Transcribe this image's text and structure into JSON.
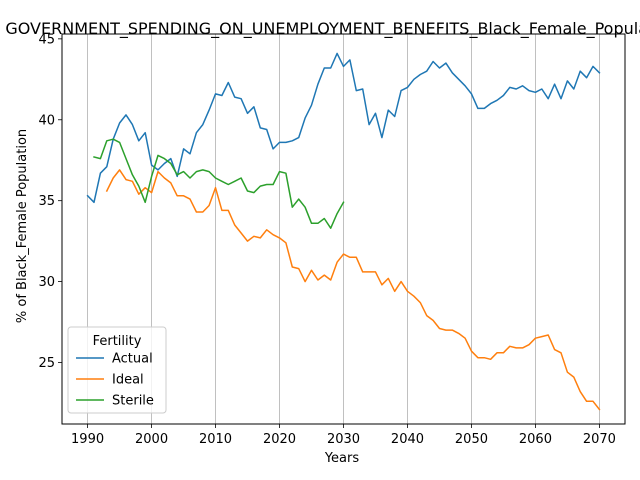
{
  "chart_data": {
    "type": "line",
    "title": "GOVERNMENT_SPENDING_ON_UNEMPLOYMENT_BENEFITS_Black_Female_Population",
    "xlabel": "Years",
    "ylabel": "% of Black_Female Population",
    "xlim": [
      1986,
      2074
    ],
    "ylim": [
      21.2,
      45.3
    ],
    "xticks": [
      1990,
      2000,
      2010,
      2020,
      2030,
      2040,
      2050,
      2060,
      2070
    ],
    "yticks": [
      25,
      30,
      35,
      40,
      45
    ],
    "grid": "x-only",
    "legend": {
      "title": "Fertility",
      "placement": "lower-left"
    },
    "series": [
      {
        "name": "Actual",
        "color": "#1f77b4",
        "x": [
          1990,
          1991,
          1992,
          1993,
          1994,
          1995,
          1996,
          1997,
          1998,
          1999,
          2000,
          2001,
          2002,
          2003,
          2004,
          2005,
          2006,
          2007,
          2008,
          2009,
          2010,
          2011,
          2012,
          2013,
          2014,
          2015,
          2016,
          2017,
          2018,
          2019,
          2020,
          2021,
          2022,
          2023,
          2024,
          2025,
          2026,
          2027,
          2028,
          2029,
          2030,
          2031,
          2032,
          2033,
          2034,
          2035,
          2036,
          2037,
          2038,
          2039,
          2040,
          2041,
          2042,
          2043,
          2044,
          2045,
          2046,
          2047,
          2048,
          2049,
          2050,
          2051,
          2052,
          2053,
          2054,
          2055,
          2056,
          2057,
          2058,
          2059,
          2060,
          2061,
          2062,
          2063,
          2064,
          2065,
          2066,
          2067,
          2068,
          2069,
          2070
        ],
        "values": [
          35.3,
          34.9,
          36.7,
          37.1,
          38.8,
          39.8,
          40.3,
          39.7,
          38.7,
          39.2,
          37.2,
          36.9,
          37.3,
          37.6,
          36.5,
          38.2,
          37.9,
          39.2,
          39.7,
          40.6,
          41.6,
          41.5,
          42.3,
          41.4,
          41.3,
          40.4,
          40.8,
          39.5,
          39.4,
          38.2,
          38.6,
          38.6,
          38.7,
          38.9,
          40.1,
          40.9,
          42.2,
          43.2,
          43.2,
          44.1,
          43.3,
          43.7,
          41.8,
          41.9,
          39.7,
          40.4,
          38.9,
          40.6,
          40.2,
          41.8,
          42.0,
          42.5,
          42.8,
          43.0,
          43.6,
          43.2,
          43.5,
          42.9,
          42.5,
          42.1,
          41.6,
          40.7,
          40.7,
          41.0,
          41.2,
          41.5,
          42.0,
          41.9,
          42.1,
          41.8,
          41.7,
          41.9,
          41.3,
          42.2,
          41.3,
          42.4,
          41.9,
          43.0,
          42.6,
          43.3,
          42.9
        ]
      },
      {
        "name": "Ideal",
        "color": "#ff7f0e",
        "x": [
          1993,
          1994,
          1995,
          1996,
          1997,
          1998,
          1999,
          2000,
          2001,
          2002,
          2003,
          2004,
          2005,
          2006,
          2007,
          2008,
          2009,
          2010,
          2011,
          2012,
          2013,
          2014,
          2015,
          2016,
          2017,
          2018,
          2019,
          2020,
          2021,
          2022,
          2023,
          2024,
          2025,
          2026,
          2027,
          2028,
          2029,
          2030,
          2031,
          2032,
          2033,
          2034,
          2035,
          2036,
          2037,
          2038,
          2039,
          2040,
          2041,
          2042,
          2043,
          2044,
          2045,
          2046,
          2047,
          2048,
          2049,
          2050,
          2051,
          2052,
          2053,
          2054,
          2055,
          2056,
          2057,
          2058,
          2059,
          2060,
          2061,
          2062,
          2063,
          2064,
          2065,
          2066,
          2067,
          2068,
          2069,
          2070
        ],
        "values": [
          35.6,
          36.4,
          36.9,
          36.3,
          36.2,
          35.4,
          35.8,
          35.5,
          36.8,
          36.4,
          36.1,
          35.3,
          35.3,
          35.1,
          34.3,
          34.3,
          34.7,
          35.8,
          34.4,
          34.4,
          33.5,
          33.0,
          32.5,
          32.8,
          32.7,
          33.2,
          32.9,
          32.7,
          32.4,
          30.9,
          30.8,
          30.0,
          30.7,
          30.1,
          30.4,
          30.1,
          31.2,
          31.7,
          31.5,
          31.5,
          30.6,
          30.6,
          30.6,
          29.8,
          30.2,
          29.4,
          30.0,
          29.4,
          29.1,
          28.7,
          27.9,
          27.6,
          27.1,
          27.0,
          27.0,
          26.8,
          26.5,
          25.7,
          25.3,
          25.3,
          25.2,
          25.6,
          25.6,
          26.0,
          25.9,
          25.9,
          26.1,
          26.5,
          26.6,
          26.7,
          25.8,
          25.6,
          24.4,
          24.1,
          23.2,
          22.6,
          22.6,
          22.1
        ]
      },
      {
        "name": "Sterile",
        "color": "#2ca02c",
        "x": [
          1991,
          1992,
          1993,
          1994,
          1995,
          1996,
          1997,
          1998,
          1999,
          2000,
          2001,
          2002,
          2003,
          2004,
          2005,
          2006,
          2007,
          2008,
          2009,
          2010,
          2011,
          2012,
          2013,
          2014,
          2015,
          2016,
          2017,
          2018,
          2019,
          2020,
          2021,
          2022,
          2023,
          2024,
          2025,
          2026,
          2027,
          2028,
          2029,
          2030
        ],
        "values": [
          37.7,
          37.6,
          38.7,
          38.8,
          38.6,
          37.6,
          36.6,
          35.9,
          34.9,
          36.5,
          37.8,
          37.6,
          37.3,
          36.6,
          36.8,
          36.4,
          36.8,
          36.9,
          36.8,
          36.4,
          36.2,
          36.0,
          36.2,
          36.4,
          35.6,
          35.5,
          35.9,
          36.0,
          36.0,
          36.8,
          36.7,
          34.6,
          35.1,
          34.6,
          33.6,
          33.6,
          33.9,
          33.3,
          34.2,
          34.9
        ]
      }
    ]
  }
}
